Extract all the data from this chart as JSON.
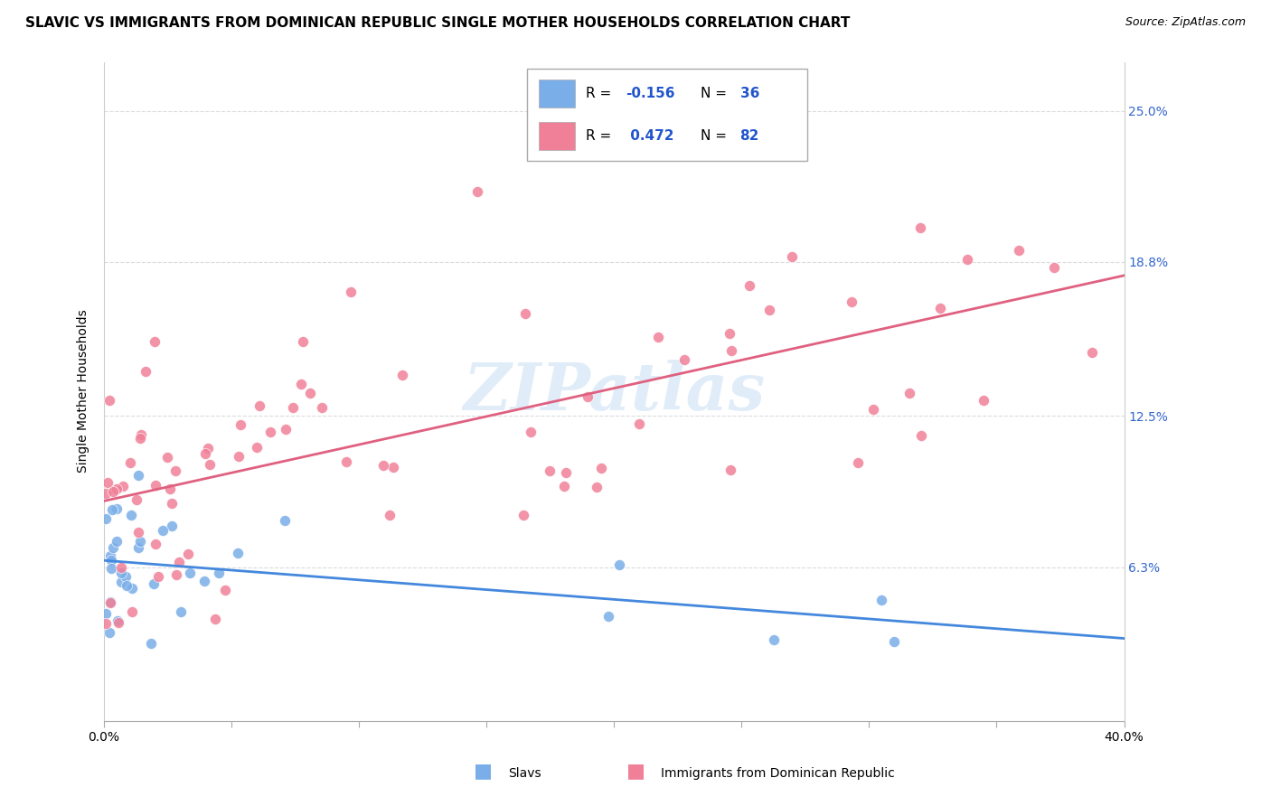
{
  "title": "SLAVIC VS IMMIGRANTS FROM DOMINICAN REPUBLIC SINGLE MOTHER HOUSEHOLDS CORRELATION CHART",
  "source": "Source: ZipAtlas.com",
  "ylabel": "Single Mother Households",
  "ytick_labels": [
    "6.3%",
    "12.5%",
    "18.8%",
    "25.0%"
  ],
  "ytick_values": [
    0.063,
    0.125,
    0.188,
    0.25
  ],
  "xlim": [
    0.0,
    0.4
  ],
  "ylim": [
    0.0,
    0.27
  ],
  "legend_label_slavs": "Slavs",
  "legend_label_dr": "Immigrants from Dominican Republic",
  "watermark": "ZIPatlas",
  "slavic_color": "#7aaee8",
  "dr_color": "#f08098",
  "slavic_line_color": "#4488dd",
  "dr_line_color": "#e06080",
  "background_color": "#ffffff",
  "grid_color": "#cccccc",
  "slavic_R": -0.156,
  "slavic_N": 36,
  "dr_R": 0.472,
  "dr_N": 82,
  "title_fontsize": 11,
  "axis_label_fontsize": 10,
  "tick_fontsize": 10,
  "legend_fontsize": 11,
  "source_fontsize": 9
}
